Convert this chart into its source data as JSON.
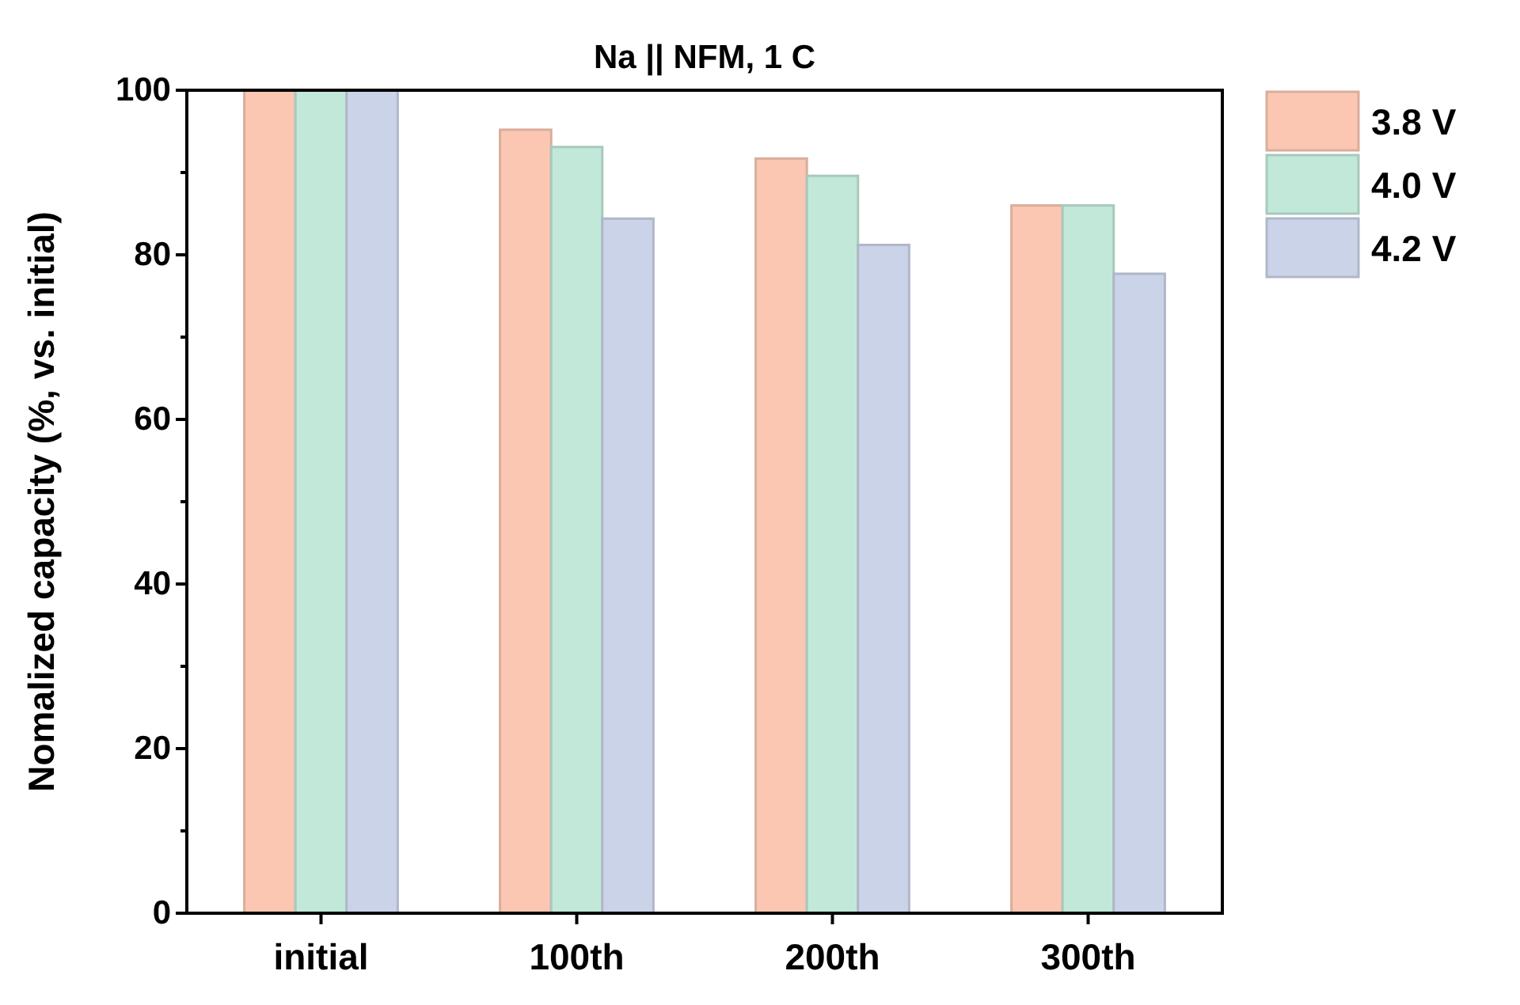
{
  "chart_data": {
    "type": "bar",
    "title": "Na || NFM, 1 C",
    "ylabel": "Nomalized capacity (%, vs. initial)",
    "categories": [
      "initial",
      "100th",
      "200th",
      "300th"
    ],
    "series": [
      {
        "name": "3.8 V",
        "color": "#fbc7b3",
        "values": [
          100,
          95.2,
          91.7,
          86.0
        ]
      },
      {
        "name": "4.0 V",
        "color": "#c2e8da",
        "values": [
          100,
          93.1,
          89.6,
          86.0
        ]
      },
      {
        "name": "4.2 V",
        "color": "#cbd3e8",
        "values": [
          100,
          84.4,
          81.2,
          77.7
        ]
      }
    ],
    "ylim": [
      0,
      100
    ],
    "yticks": [
      0,
      {
        "value": 10,
        "label": null
      },
      20,
      {
        "value": 30,
        "label": null
      },
      40,
      {
        "value": 50,
        "label": null
      },
      60,
      {
        "value": 70,
        "label": null
      },
      80,
      {
        "value": 90,
        "label": null
      },
      100
    ],
    "legend": "top right",
    "grid": false
  }
}
